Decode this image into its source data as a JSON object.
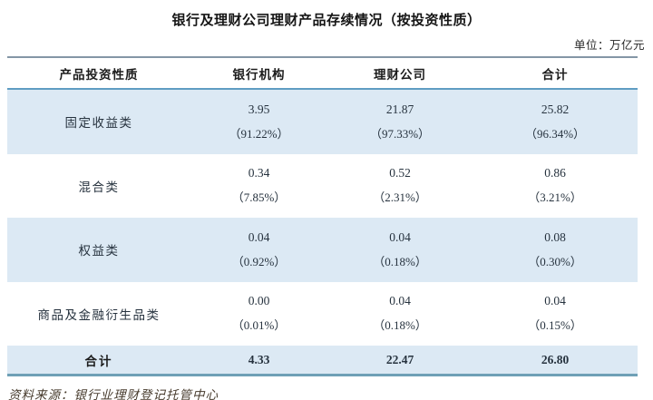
{
  "title": "银行及理财公司理财产品存续情况（按投资性质）",
  "unit_label": "单位：万亿元",
  "table": {
    "headers": [
      "产品投资性质",
      "银行机构",
      "理财公司",
      "合计"
    ],
    "rows": [
      {
        "label": "固定收益类",
        "bank": "3.95",
        "bank_pct": "（91.22%）",
        "wmc": "21.87",
        "wmc_pct": "（97.33%）",
        "total": "25.82",
        "total_pct": "（96.34%）"
      },
      {
        "label": "混合类",
        "bank": "0.34",
        "bank_pct": "（7.85%）",
        "wmc": "0.52",
        "wmc_pct": "（2.31%）",
        "total": "0.86",
        "total_pct": "（3.21%）"
      },
      {
        "label": "权益类",
        "bank": "0.04",
        "bank_pct": "（0.92%）",
        "wmc": "0.04",
        "wmc_pct": "（0.18%）",
        "total": "0.08",
        "total_pct": "（0.30%）"
      },
      {
        "label": "商品及金融衍生品类",
        "bank": "0.00",
        "bank_pct": "（0.01%）",
        "wmc": "0.04",
        "wmc_pct": "（0.18%）",
        "total": "0.04",
        "total_pct": "（0.15%）"
      }
    ],
    "total_row": {
      "label": "合计",
      "bank": "4.33",
      "wmc": "22.47",
      "total": "26.80"
    }
  },
  "source": "资料来源：银行业理财登记托管中心",
  "colors": {
    "row_highlight": "#dce9f4",
    "top_rule": "#8496a6",
    "header_rule": "#5f9dc3",
    "bottom_rule": "#6fa0b6"
  }
}
